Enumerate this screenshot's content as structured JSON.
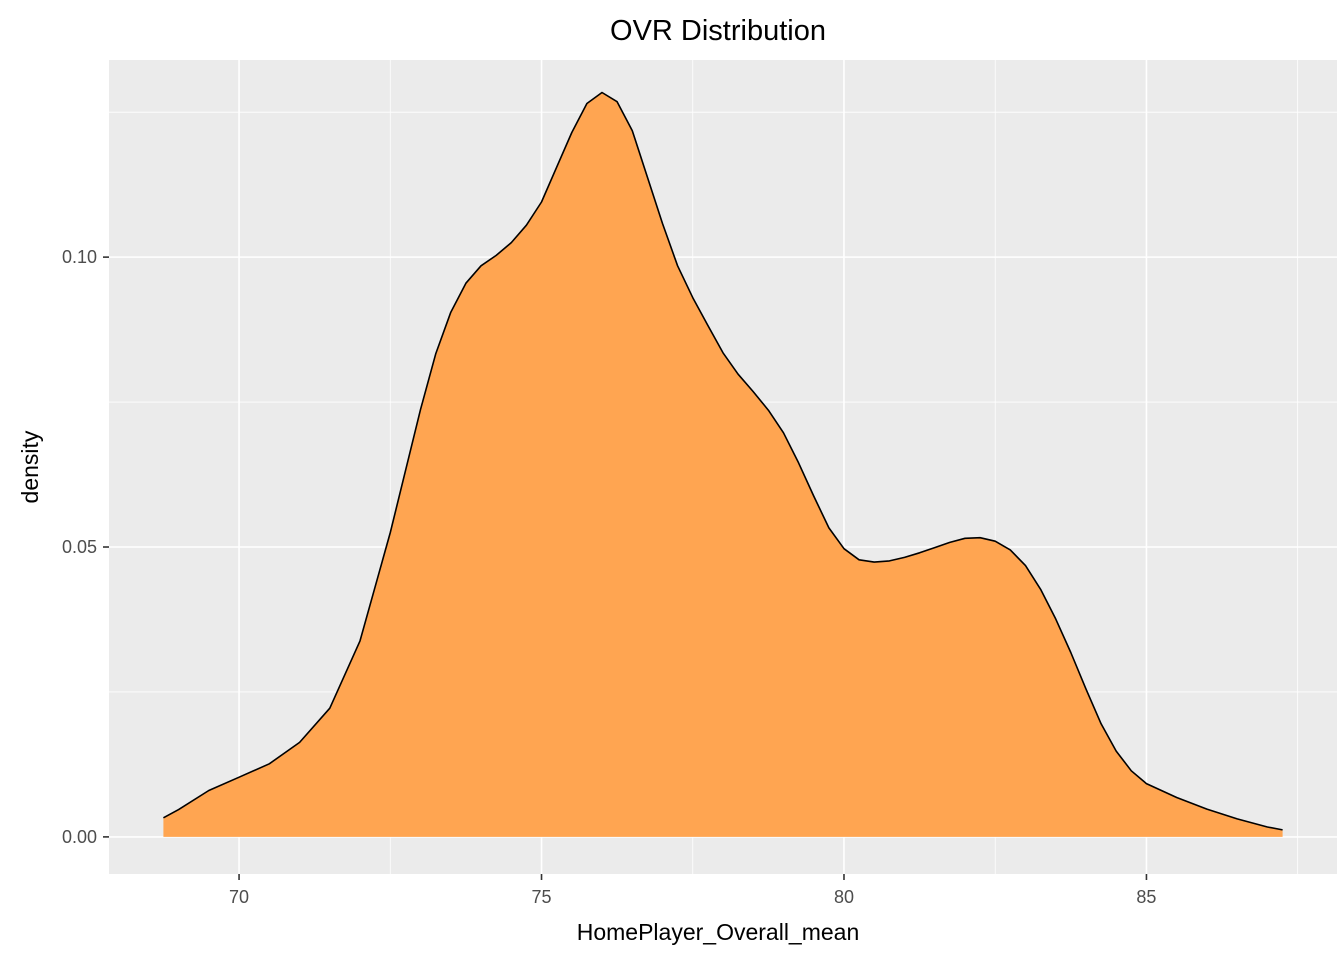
{
  "chart_data": {
    "type": "area",
    "title": "OVR Distribution",
    "xlabel": "HomePlayer_Overall_mean",
    "ylabel": "density",
    "xlim": [
      67.85,
      88.15
    ],
    "ylim": [
      -0.0064,
      0.134
    ],
    "x_ticks": [
      70,
      75,
      80,
      85
    ],
    "x_tick_labels": [
      "70",
      "75",
      "80",
      "85"
    ],
    "y_ticks": [
      0.0,
      0.05,
      0.1
    ],
    "y_tick_labels": [
      "0.00",
      "0.05",
      "0.10"
    ],
    "grid": true,
    "background": "#ebebeb",
    "fill_color": "#ffa551",
    "line_color": "#000000",
    "series": [
      {
        "x": [
          68.75,
          69.0,
          69.5,
          70.0,
          70.5,
          71.0,
          71.5,
          72.0,
          72.5,
          73.0,
          73.25,
          73.5,
          73.75,
          74.0,
          74.25,
          74.5,
          74.75,
          75.0,
          75.25,
          75.5,
          75.75,
          76.0,
          76.25,
          76.5,
          76.75,
          77.0,
          77.25,
          77.5,
          77.75,
          78.0,
          78.25,
          78.5,
          78.75,
          79.0,
          79.25,
          79.5,
          79.75,
          80.0,
          80.25,
          80.5,
          80.75,
          81.0,
          81.25,
          81.5,
          81.75,
          82.0,
          82.25,
          82.5,
          82.75,
          83.0,
          83.25,
          83.5,
          83.75,
          84.0,
          84.25,
          84.5,
          84.75,
          85.0,
          85.5,
          86.0,
          86.5,
          87.0,
          87.25
        ],
        "y": [
          0.0033,
          0.0047,
          0.008,
          0.0103,
          0.0126,
          0.0163,
          0.0222,
          0.0338,
          0.0525,
          0.0737,
          0.0833,
          0.0905,
          0.0955,
          0.0985,
          0.1003,
          0.1025,
          0.1055,
          0.1095,
          0.1155,
          0.1215,
          0.1265,
          0.1284,
          0.1268,
          0.1218,
          0.1138,
          0.1058,
          0.0985,
          0.093,
          0.0882,
          0.0835,
          0.0798,
          0.0768,
          0.0736,
          0.0697,
          0.0645,
          0.0588,
          0.0533,
          0.0497,
          0.0478,
          0.0474,
          0.0476,
          0.0482,
          0.049,
          0.0499,
          0.0508,
          0.0515,
          0.0516,
          0.051,
          0.0495,
          0.0468,
          0.0427,
          0.0376,
          0.0318,
          0.0255,
          0.0195,
          0.0148,
          0.0114,
          0.0092,
          0.0068,
          0.0048,
          0.0031,
          0.0017,
          0.0012
        ]
      }
    ]
  }
}
